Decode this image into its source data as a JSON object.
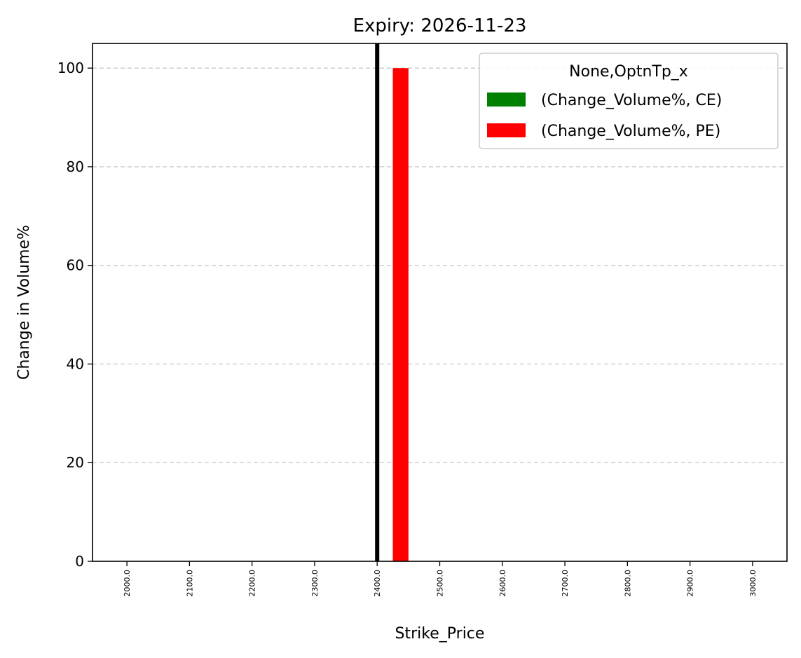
{
  "chart_data": {
    "type": "bar",
    "title": "Expiry: 2026-11-23",
    "xlabel": "Strike_Price",
    "ylabel": "Change in Volume%",
    "categories": [
      "2000.0",
      "2100.0",
      "2200.0",
      "2300.0",
      "2400.0",
      "2500.0",
      "2600.0",
      "2700.0",
      "2800.0",
      "2900.0",
      "3000.0"
    ],
    "series": [
      {
        "name": "(Change_Volume%, CE)",
        "color": "#008000",
        "values": [
          0,
          0,
          0,
          0,
          0,
          0,
          0,
          0,
          0,
          0,
          0
        ]
      },
      {
        "name": "(Change_Volume%, PE)",
        "color": "#ff0000",
        "values": [
          0,
          0,
          0,
          0,
          100,
          0,
          0,
          0,
          0,
          0,
          0
        ]
      }
    ],
    "ylim": [
      0,
      105
    ],
    "yticks": [
      "0",
      "20",
      "40",
      "60",
      "80",
      "100"
    ],
    "grid": "y-dashed",
    "legend": {
      "title": "None,OptnTp_x",
      "placement": "top-right"
    },
    "reference_line": {
      "x": "2400.0",
      "color": "#000000"
    }
  }
}
